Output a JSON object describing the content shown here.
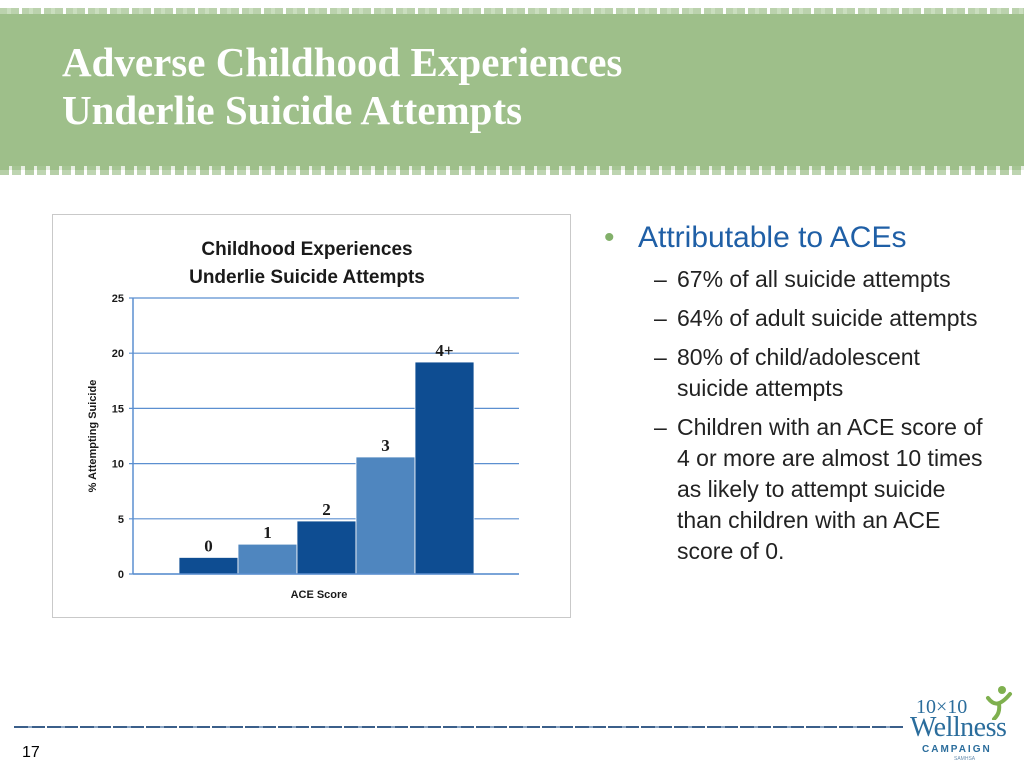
{
  "slide": {
    "title_line1": "Adverse Childhood Experiences",
    "title_line2": "Underlie Suicide Attempts",
    "page_number": "17"
  },
  "bullets": {
    "main": "Attributable to ACEs",
    "items": [
      "67% of all suicide attempts",
      "64% of adult suicide attempts",
      "80% of child/adolescent suicide attempts",
      "Children with an ACE score of 4 or more are almost 10 times as likely to attempt suicide than children with an ACE score of 0."
    ]
  },
  "logo": {
    "top": "10×10",
    "main": "Wellness",
    "campaign": "CAMPAIGN",
    "sub": "SAMHSA"
  },
  "colors": {
    "header": "#9ebf8a",
    "title_text": "#ffffff",
    "bullet_text": "#1f5fa6",
    "bullet_dot": "#82b06a",
    "bar_dark": "#0e4d92",
    "bar_light": "#4f86bf",
    "grid": "#5b8fd0"
  },
  "chart_data": {
    "type": "bar",
    "title_line1": "Childhood Experiences",
    "title_line2": "Underlie Suicide Attempts",
    "xlabel": "ACE Score",
    "ylabel": "% Attempting Suicide",
    "categories": [
      "0",
      "1",
      "2",
      "3",
      "4+"
    ],
    "values": [
      1.5,
      2.7,
      4.8,
      10.6,
      19.2
    ],
    "bar_colors": [
      "#0e4d92",
      "#4f86bf",
      "#0e4d92",
      "#4f86bf",
      "#0e4d92"
    ],
    "ylim": [
      0,
      25
    ],
    "yticks": [
      0,
      5,
      10,
      15,
      20,
      25
    ],
    "grid": true,
    "legend": "none"
  }
}
